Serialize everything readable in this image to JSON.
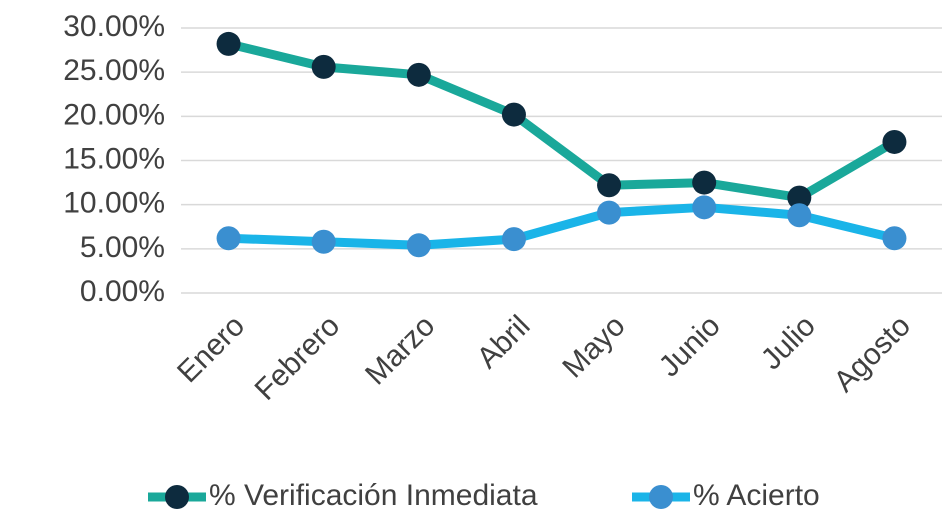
{
  "chart_data": {
    "type": "line",
    "categories": [
      "Enero",
      "Febrero",
      "Marzo",
      "Abril",
      "Mayo",
      "Junio",
      "Julio",
      "Agosto"
    ],
    "series": [
      {
        "name": "% Verificación Inmediata",
        "color": "#1aa89a",
        "marker_color": "#0d2b3e",
        "values": [
          28.2,
          25.6,
          24.7,
          20.2,
          12.2,
          12.5,
          10.8,
          17.1
        ]
      },
      {
        "name": "% Acierto",
        "color": "#1ab4e8",
        "marker_color": "#3a8fd0",
        "values": [
          6.2,
          5.8,
          5.4,
          6.1,
          9.1,
          9.7,
          8.8,
          6.2
        ]
      }
    ],
    "ylim": [
      0,
      30
    ],
    "yticks": [
      {
        "value": 0,
        "label": "0.00%"
      },
      {
        "value": 5,
        "label": "5.00%"
      },
      {
        "value": 10,
        "label": "10.00%"
      },
      {
        "value": 15,
        "label": "15.00%"
      },
      {
        "value": 20,
        "label": "20.00%"
      },
      {
        "value": 25,
        "label": "25.00%"
      },
      {
        "value": 30,
        "label": "30.00%"
      }
    ],
    "grid": true,
    "legend": "bottom"
  }
}
